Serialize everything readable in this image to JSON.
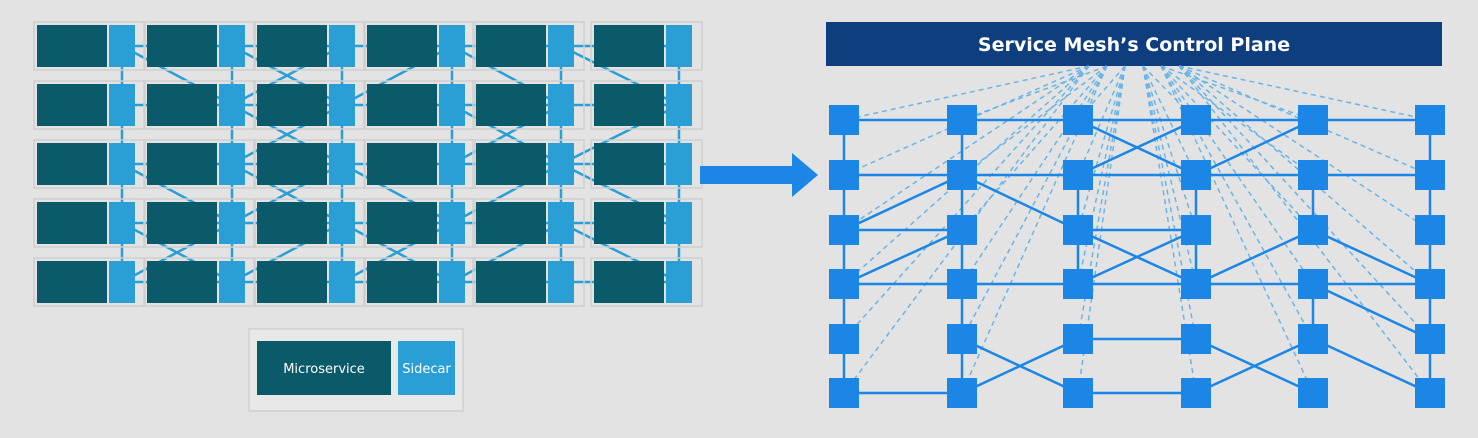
{
  "left_panel": {
    "grid_rows": 5,
    "grid_cols": 6,
    "legend": {
      "microservice_label": "Microservice",
      "sidecar_label": "Sidecar"
    }
  },
  "arrow": {
    "direction": "right"
  },
  "right_panel": {
    "title": "Service Mesh’s Control Plane",
    "grid_rows": 6,
    "grid_cols": 6
  },
  "colors": {
    "background": "#e3e3e3",
    "microservice": "#0b5a6a",
    "sidecar": "#2a9fd6",
    "cell_border": "#cfcfcf",
    "left_link": "#2a9fd6",
    "control_plane_bar": "#0f3e7e",
    "control_plane_text": "#ffffff",
    "proxy_node": "#1b86e6",
    "proxy_link": "#1b86e6",
    "control_link": "#6ab4e8",
    "arrow": "#1b86e6"
  }
}
